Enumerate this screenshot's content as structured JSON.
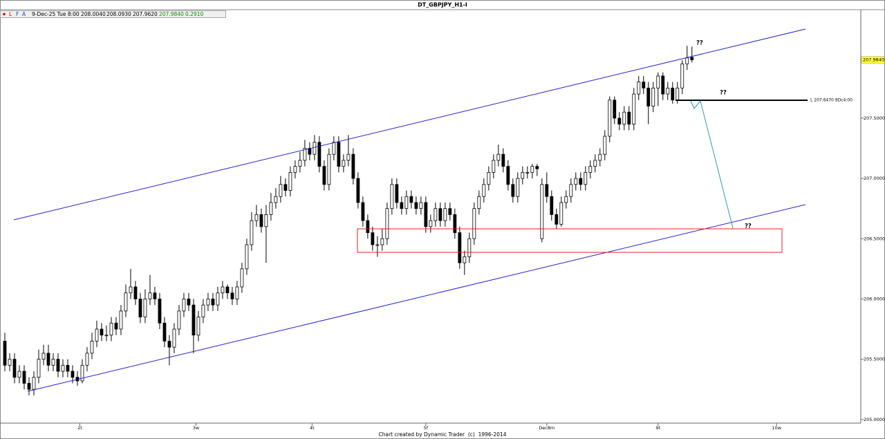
{
  "chart_data": {
    "type": "candlestick",
    "title": "DT_GBPJPY_H1-I",
    "info_bar": {
      "date": "9-Dec-25 Tue 8:00",
      "values": [
        "208.0040",
        "208.0930",
        "207.9620",
        "207.9840",
        "0.2910"
      ]
    },
    "footer": "Chart created by Dynamic Trader  (c)  1996-2014",
    "annotations": [
      "??",
      "??",
      "??",
      "L 207.6470 9Dc4:00"
    ],
    "last_price": {
      "value": 207.984,
      "label": "207.9840"
    },
    "ylim": [
      204.97,
      208.4
    ],
    "yticks": [
      {
        "value": 205,
        "label": "205.0000"
      },
      {
        "value": 205.5,
        "label": "205.5000"
      },
      {
        "value": 206,
        "label": "206.0000"
      },
      {
        "value": 206.5,
        "label": "206.5000"
      },
      {
        "value": 207,
        "label": "207.0000"
      },
      {
        "value": 207.5,
        "label": "207.5000"
      }
    ],
    "xlim": [
      -1,
      176.9
    ],
    "xticks": [
      {
        "value": 15.5,
        "label": "2t"
      },
      {
        "value": 39.5,
        "label": "3w"
      },
      {
        "value": 63.5,
        "label": "4t"
      },
      {
        "value": 87,
        "label": "5f"
      },
      {
        "value": 112,
        "label": "Dec8m"
      },
      {
        "value": 135,
        "label": "9t"
      },
      {
        "value": 159.5,
        "label": "10w"
      }
    ],
    "up_color": "#ffffff",
    "down_color": "#000000",
    "outline_color": "#000000",
    "open": [
      205.65,
      205.45,
      205.5,
      205.35,
      205.4,
      205.3,
      205.25,
      205.35,
      205.5,
      205.55,
      205.45,
      205.5,
      205.4,
      205.45,
      205.4,
      205.35,
      205.32,
      205.45,
      205.55,
      205.65,
      205.75,
      205.7,
      205.7,
      205.8,
      205.75,
      205.9,
      206.05,
      206.1,
      206.0,
      205.85,
      206.0,
      206.05,
      206.0,
      205.8,
      205.65,
      205.6,
      205.75,
      205.9,
      206.0,
      205.95,
      205.7,
      205.85,
      205.95,
      206.0,
      205.95,
      206.05,
      206.1,
      206.05,
      206.0,
      206.1,
      206.25,
      206.45,
      206.65,
      206.7,
      206.6,
      206.7,
      206.8,
      206.85,
      206.95,
      206.9,
      207.05,
      207.1,
      207.15,
      207.25,
      207.2,
      207.3,
      207.1,
      206.95,
      207.2,
      207.3,
      207.1,
      207.15,
      207.2,
      207.0,
      206.8,
      206.65,
      206.55,
      206.45,
      206.45,
      206.5,
      206.75,
      206.95,
      206.8,
      206.75,
      206.85,
      206.8,
      206.75,
      206.8,
      206.6,
      206.65,
      206.75,
      206.65,
      206.75,
      206.7,
      206.55,
      206.3,
      206.35,
      206.5,
      206.75,
      206.85,
      206.95,
      207.05,
      207.15,
      207.2,
      207.1,
      206.95,
      206.85,
      207.0,
      207.05,
      207.05,
      207.1,
      206.5,
      206.95,
      206.85,
      206.7,
      206.62,
      206.8,
      206.85,
      206.95,
      207.0,
      206.95,
      207.05,
      207.1,
      207.15,
      207.2,
      207.35,
      207.65,
      207.5,
      207.45,
      207.55,
      207.45,
      207.7,
      207.8,
      207.75,
      207.6,
      207.75,
      207.85,
      207.7,
      207.75,
      207.65,
      207.75,
      207.95,
      208.004
    ],
    "high": [
      205.72,
      205.55,
      205.55,
      205.45,
      205.45,
      205.35,
      205.4,
      205.58,
      205.62,
      205.62,
      205.55,
      205.55,
      205.5,
      205.5,
      205.45,
      205.4,
      205.5,
      205.6,
      205.72,
      205.82,
      205.8,
      205.78,
      205.85,
      205.85,
      205.95,
      206.12,
      206.25,
      206.15,
      206.05,
      206.08,
      206.2,
      206.1,
      206.05,
      205.85,
      205.7,
      205.8,
      205.95,
      206.05,
      206.05,
      206.0,
      205.9,
      206.0,
      206.05,
      206.05,
      206.1,
      206.15,
      206.12,
      206.1,
      206.15,
      206.3,
      206.5,
      206.72,
      206.78,
      206.75,
      206.78,
      206.88,
      206.92,
      207.02,
      207.0,
      207.1,
      207.15,
      207.22,
      207.32,
      207.3,
      207.36,
      207.35,
      207.15,
      207.25,
      207.35,
      207.35,
      207.2,
      207.36,
      207.25,
      207.05,
      206.85,
      206.7,
      206.6,
      206.52,
      206.58,
      206.8,
      207.0,
      207.0,
      206.85,
      206.9,
      206.9,
      206.85,
      206.85,
      206.85,
      206.7,
      206.8,
      206.8,
      206.8,
      206.8,
      206.75,
      206.6,
      206.4,
      206.55,
      206.8,
      206.9,
      207.0,
      207.1,
      207.2,
      207.28,
      207.25,
      207.15,
      207.0,
      207.05,
      207.1,
      207.1,
      207.12,
      207.12,
      207.0,
      207.05,
      206.9,
      206.75,
      206.85,
      206.9,
      207.0,
      207.05,
      207.05,
      207.1,
      207.15,
      207.2,
      207.25,
      207.4,
      207.68,
      207.68,
      207.55,
      207.6,
      207.6,
      207.75,
      207.85,
      207.85,
      207.8,
      207.8,
      207.88,
      207.88,
      207.8,
      207.8,
      207.8,
      207.98,
      208.1,
      208.093
    ],
    "low": [
      205.4,
      205.4,
      205.3,
      205.3,
      205.25,
      205.2,
      205.2,
      205.3,
      205.45,
      205.4,
      205.4,
      205.35,
      205.35,
      205.35,
      205.3,
      205.28,
      205.3,
      205.4,
      205.5,
      205.6,
      205.65,
      205.65,
      205.65,
      205.7,
      205.7,
      205.85,
      206.0,
      205.95,
      205.8,
      205.8,
      205.95,
      205.95,
      205.75,
      205.6,
      205.45,
      205.55,
      205.7,
      205.85,
      205.9,
      205.55,
      205.65,
      205.8,
      205.9,
      205.9,
      205.9,
      206.0,
      206.0,
      205.95,
      205.95,
      206.05,
      206.2,
      206.4,
      206.6,
      206.55,
      206.3,
      206.65,
      206.75,
      206.8,
      206.85,
      206.85,
      207.0,
      207.05,
      207.1,
      207.15,
      207.15,
      207.05,
      206.9,
      206.9,
      207.15,
      207.05,
      207.05,
      207.1,
      206.95,
      206.75,
      206.6,
      206.5,
      206.4,
      206.35,
      206.4,
      206.45,
      206.7,
      206.75,
      206.7,
      206.7,
      206.75,
      206.7,
      206.7,
      206.55,
      206.55,
      206.6,
      206.6,
      206.6,
      206.65,
      206.5,
      206.25,
      206.2,
      206.3,
      206.45,
      206.7,
      206.8,
      206.9,
      207.0,
      207.1,
      207.05,
      206.9,
      206.8,
      206.8,
      206.95,
      207.0,
      207.0,
      207.02,
      206.47,
      206.8,
      206.65,
      206.58,
      206.6,
      206.75,
      206.8,
      206.9,
      206.9,
      206.9,
      207.0,
      207.05,
      207.1,
      207.15,
      207.3,
      207.45,
      207.4,
      207.4,
      207.4,
      207.4,
      207.65,
      207.7,
      207.45,
      207.55,
      207.6,
      207.65,
      207.65,
      207.62,
      207.62,
      207.7,
      207.9,
      207.962
    ],
    "close": [
      205.45,
      205.5,
      205.35,
      205.4,
      205.3,
      205.25,
      205.35,
      205.5,
      205.55,
      205.45,
      205.5,
      205.4,
      205.45,
      205.4,
      205.35,
      205.32,
      205.45,
      205.55,
      205.65,
      205.75,
      205.7,
      205.7,
      205.8,
      205.75,
      205.9,
      206.05,
      206.1,
      206.0,
      205.85,
      206.0,
      206.05,
      206.0,
      205.8,
      205.65,
      205.6,
      205.75,
      205.9,
      206.0,
      205.95,
      205.7,
      205.85,
      205.95,
      206.0,
      205.95,
      206.05,
      206.1,
      206.05,
      206.0,
      206.1,
      206.25,
      206.45,
      206.65,
      206.7,
      206.6,
      206.7,
      206.8,
      206.85,
      206.95,
      206.9,
      207.05,
      207.1,
      207.15,
      207.25,
      207.2,
      207.3,
      207.1,
      206.95,
      207.2,
      207.3,
      207.1,
      207.15,
      207.2,
      207.0,
      206.8,
      206.65,
      206.55,
      206.45,
      206.45,
      206.5,
      206.75,
      206.95,
      206.8,
      206.75,
      206.85,
      206.8,
      206.75,
      206.8,
      206.6,
      206.65,
      206.75,
      206.65,
      206.75,
      206.7,
      206.55,
      206.3,
      206.35,
      206.5,
      206.75,
      206.85,
      206.95,
      207.05,
      207.15,
      207.2,
      207.1,
      206.95,
      206.85,
      207.0,
      207.05,
      207.05,
      207.1,
      207.08,
      206.95,
      206.85,
      206.7,
      206.62,
      206.8,
      206.85,
      206.95,
      207.0,
      206.95,
      207.05,
      207.1,
      207.15,
      207.2,
      207.35,
      207.65,
      207.5,
      207.45,
      207.55,
      207.45,
      207.7,
      207.8,
      207.75,
      207.6,
      207.75,
      207.85,
      207.7,
      207.75,
      207.65,
      207.75,
      207.95,
      208.0,
      207.984
    ]
  }
}
